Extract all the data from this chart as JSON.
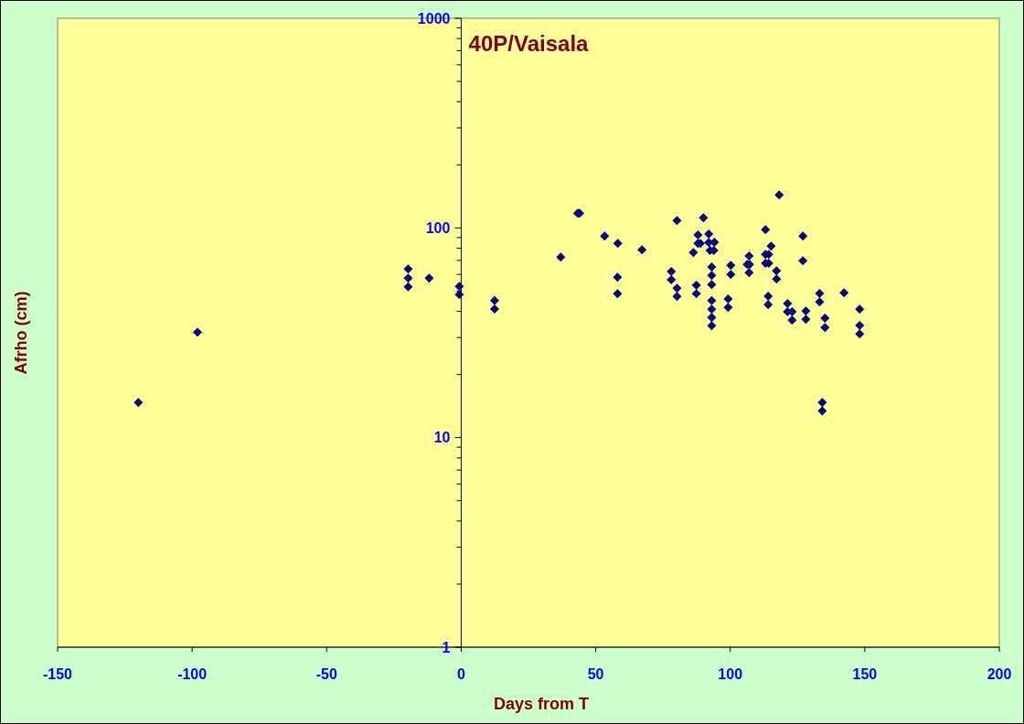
{
  "chart_data": {
    "type": "scatter",
    "title": "40P/Vaisala",
    "xlabel": "Days from T",
    "ylabel": "Afrho (cm)",
    "log": true,
    "marker": "diamond",
    "grid": false,
    "xlim": [
      -150,
      200
    ],
    "xticks": [
      -150,
      -100,
      -50,
      0,
      50,
      100,
      150,
      200
    ],
    "ylim": [
      1,
      1000
    ],
    "yticks": [
      1,
      {
        "value": 2,
        "label": null
      },
      {
        "value": 3,
        "label": null
      },
      {
        "value": 4,
        "label": null
      },
      {
        "value": 5,
        "label": null
      },
      {
        "value": 6,
        "label": null
      },
      {
        "value": 7,
        "label": null
      },
      {
        "value": 8,
        "label": null
      },
      {
        "value": 9,
        "label": null
      },
      10,
      {
        "value": 20,
        "label": null
      },
      {
        "value": 30,
        "label": null
      },
      {
        "value": 40,
        "label": null
      },
      {
        "value": 50,
        "label": null
      },
      {
        "value": 60,
        "label": null
      },
      {
        "value": 70,
        "label": null
      },
      {
        "value": 80,
        "label": null
      },
      {
        "value": 90,
        "label": null
      },
      100,
      {
        "value": 200,
        "label": null
      },
      {
        "value": 300,
        "label": null
      },
      {
        "value": 400,
        "label": null
      },
      {
        "value": 500,
        "label": null
      },
      {
        "value": 600,
        "label": null
      },
      {
        "value": 700,
        "label": null
      },
      {
        "value": 800,
        "label": null
      },
      {
        "value": 900,
        "label": null
      },
      1000
    ],
    "series": [
      {
        "color": "#000080",
        "x": [
          -120.0,
          -98.0,
          -19.7,
          -19.7,
          -19.7,
          -11.9,
          -0.7,
          -0.7,
          12.4,
          12.4,
          37.0,
          43.3,
          44.0,
          53.3,
          58.2,
          67.2,
          58.1,
          58.1,
          78.1,
          78.1,
          80.2,
          80.2,
          80.2,
          86.3,
          87.4,
          87.4,
          88.0,
          88.0,
          88.9,
          90.0,
          92.0,
          92.0,
          94.1,
          92.5,
          93.9,
          93.1,
          93.1,
          93.1,
          93.1,
          93.1,
          93.1,
          93.1,
          99.2,
          99.2,
          100.2,
          100.2,
          107.0,
          106.3,
          107.2,
          107.0,
          113.1,
          113.1,
          114.3,
          113.1,
          114.3,
          114.1,
          114.1,
          115.2,
          117.2,
          117.2,
          118.2,
          121.3,
          121.3,
          123.0,
          123.0,
          127.0,
          127.0,
          128.1,
          128.1,
          133.2,
          133.2,
          134.2,
          134.2,
          135.2,
          135.2,
          142.3,
          148.1,
          148.1,
          148.1
        ],
        "values": [
          14.7,
          31.8,
          63.7,
          57.6,
          52.4,
          57.6,
          52.6,
          48.1,
          45.0,
          41.1,
          72.6,
          117.5,
          117.5,
          91.5,
          84.4,
          78.7,
          58.2,
          48.6,
          62.0,
          56.6,
          51.6,
          47.1,
          108.5,
          76.3,
          53.3,
          48.6,
          92.6,
          84.4,
          84.4,
          111.8,
          93.6,
          85.2,
          85.5,
          78.1,
          78.1,
          65.2,
          59.4,
          53.7,
          45.0,
          41.0,
          37.4,
          34.2,
          45.9,
          41.8,
          66.3,
          60.0,
          73.5,
          67.0,
          67.0,
          61.2,
          98.1,
          74.8,
          74.8,
          67.9,
          67.9,
          47.3,
          43.1,
          81.9,
          62.4,
          57.0,
          143.7,
          43.6,
          39.8,
          39.8,
          36.3,
          91.5,
          69.7,
          40.1,
          36.7,
          48.7,
          44.4,
          14.7,
          13.4,
          37.1,
          33.5,
          49.1,
          41.0,
          34.3,
          31.2
        ]
      }
    ]
  }
}
